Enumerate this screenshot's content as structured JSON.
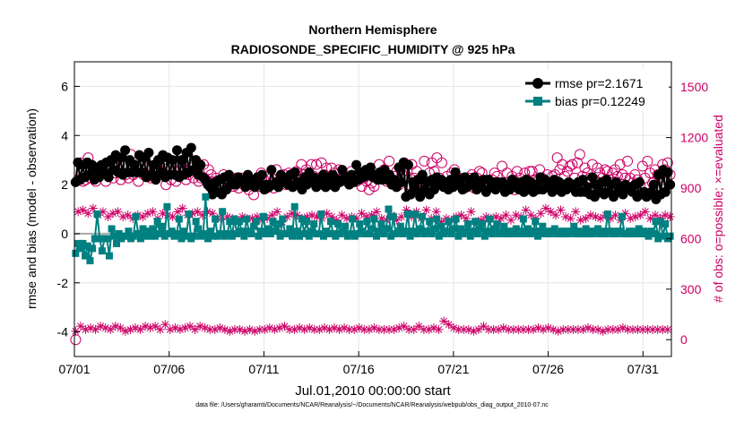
{
  "chart_data": {
    "type": "line",
    "title": "Northern Hemisphere",
    "subtitle": "RADIOSONDE_SPECIFIC_HUMIDITY @ 925 hPa",
    "xlabel": "Jul.01,2010 00:00:00 start",
    "ylabel_left": "rmse and bias (model - observation)",
    "ylabel_right": "# of obs: o=possible; ×=evaluated",
    "x_tick_labels": [
      "07/01",
      "07/06",
      "07/11",
      "07/16",
      "07/21",
      "07/26",
      "07/31"
    ],
    "y_left_ticks": [
      "-4",
      "-2",
      "0",
      "2",
      "4",
      "6"
    ],
    "y_right_ticks": [
      "0",
      "300",
      "600",
      "900",
      "1200",
      "1500"
    ],
    "ylim_left": [
      -5,
      7
    ],
    "ylim_right": [
      -100,
      1650
    ],
    "xlim_days": [
      0,
      31.5
    ],
    "legend_position": "top-right",
    "grid": true,
    "colors": {
      "rmse": "#000000",
      "bias": "#008080",
      "obs": "#cc0066",
      "zero_line": "#aaaaaa"
    },
    "series": [
      {
        "name": "rmse pr=2.1671",
        "axis": "left",
        "marker": "circle",
        "values": [
          2.1,
          2.9,
          2.2,
          2.8,
          2.3,
          2.9,
          2.4,
          2.8,
          2.2,
          2.6,
          2.3,
          2.8,
          2.5,
          2.9,
          2.3,
          3.0,
          2.6,
          3.2,
          2.5,
          3.1,
          2.4,
          3.4,
          2.5,
          3.0,
          2.5,
          2.8,
          2.5,
          3.2,
          2.5,
          3.1,
          2.3,
          3.3,
          2.4,
          2.8,
          2.2,
          3.0,
          2.5,
          3.2,
          2.3,
          3.1,
          2.4,
          3.0,
          2.4,
          3.4,
          2.3,
          3.0,
          2.4,
          3.3,
          2.5,
          3.5,
          2.6,
          3.0,
          2.4,
          2.8,
          2.3,
          2.2,
          2.0,
          1.9,
          1.6,
          2.1,
          1.7,
          2.2,
          1.6,
          2.3,
          1.8,
          2.4,
          2.0,
          2.1,
          2.0,
          2.3,
          2.1,
          2.2,
          1.9,
          2.4,
          2.0,
          2.2,
          1.9,
          2.3,
          2.1,
          2.4,
          1.8,
          2.0,
          1.9,
          2.6,
          2.0,
          2.1,
          1.9,
          2.4,
          2.1,
          2.2,
          2.0,
          2.4,
          1.9,
          2.5,
          2.1,
          2.0,
          1.8,
          2.3,
          2.0,
          2.5,
          2.1,
          2.3,
          1.9,
          2.2,
          2.0,
          2.4,
          1.9,
          2.2,
          2.0,
          2.4,
          1.9,
          2.2,
          2.1,
          2.6,
          2.2,
          2.3,
          2.0,
          2.4,
          2.1,
          2.8,
          2.2,
          2.5,
          2.3,
          2.6,
          2.4,
          2.7,
          2.3,
          2.4,
          2.2,
          2.5,
          2.2,
          2.6,
          2.2,
          2.4,
          2.0,
          2.2,
          1.9,
          2.7,
          2.1,
          2.9,
          1.5,
          2.8,
          1.6,
          2.1,
          1.8,
          2.2,
          1.5,
          2.4,
          1.8,
          2.1,
          1.6,
          2.2,
          1.8,
          2.3,
          2.0,
          2.2,
          1.9,
          2.1,
          1.8,
          2.2,
          1.9,
          2.5,
          2.0,
          2.2,
          1.8,
          2.3,
          1.9,
          2.2,
          2.0,
          2.3,
          1.8,
          2.1,
          1.9,
          2.2,
          1.7,
          2.2,
          1.9,
          2.1,
          1.8,
          2.1,
          2.0,
          2.1,
          1.7,
          2.0,
          1.8,
          2.2,
          1.9,
          2.1,
          1.8,
          2.1,
          1.7,
          2.2,
          1.8,
          2.1,
          1.7,
          2.0,
          1.8,
          2.3,
          1.8,
          2.2,
          1.9,
          2.1,
          1.7,
          2.2,
          1.8,
          2.1,
          1.7,
          2.0,
          1.8,
          2.1,
          1.9,
          2.0,
          1.7,
          2.1,
          1.7,
          2.2,
          1.7,
          1.9,
          1.6,
          2.3,
          1.5,
          2.0,
          1.7,
          2.1,
          1.6,
          2.2,
          1.7,
          2.0,
          1.5,
          2.1,
          1.7,
          1.9,
          1.6,
          2.0,
          1.8,
          1.9,
          1.7,
          2.0,
          1.5,
          2.1,
          1.6,
          1.7,
          1.5,
          1.6,
          1.7,
          2.0,
          1.4,
          2.4,
          1.6,
          2.6,
          1.7,
          2.5,
          2.0
        ]
      },
      {
        "name": "bias pr=0.12249",
        "axis": "left",
        "marker": "square",
        "values": [
          -0.8,
          -0.4,
          -0.6,
          -0.4,
          -0.9,
          -0.5,
          -1.1,
          -0.6,
          -0.2,
          0.8,
          -0.2,
          -0.7,
          -0.2,
          -0.2,
          -0.9,
          0.2,
          -0.1,
          -0.4,
          0.0,
          -0.2,
          -0.1,
          -0.1,
          0.1,
          -0.2,
          -0.1,
          0.7,
          0.0,
          -0.2,
          0.2,
          -0.1,
          0.1,
          -0.1,
          0.2,
          -0.1,
          0.5,
          0.0,
          0.3,
          -0.1,
          1.1,
          0.0,
          0.1,
          -0.1,
          0.0,
          0.6,
          -0.2,
          0.1,
          -0.1,
          0.8,
          -0.2,
          -0.1,
          0.5,
          0.2,
          -0.1,
          0.0,
          1.5,
          -0.2,
          0.1,
          -0.1,
          0.6,
          -0.1,
          0.0,
          0.9,
          -0.1,
          0.0,
          0.5,
          -0.1,
          0.6,
          0.0,
          0.5,
          0.1,
          -0.1,
          0.6,
          0.1,
          0.0,
          0.3,
          0.5,
          -0.1,
          0.1,
          0.7,
          0.0,
          0.2,
          0.0,
          0.5,
          0.1,
          0.4,
          -0.1,
          0.6,
          0.0,
          0.0,
          0.2,
          -0.1,
          1.1,
          0.1,
          -0.1,
          0.6,
          0.0,
          0.5,
          -0.1,
          0.1,
          0.4,
          0.0,
          0.0,
          0.8,
          -0.1,
          0.1,
          0.0,
          0.5,
          0.0,
          -0.1,
          0.4,
          0.0,
          0.1,
          0.3,
          -0.1,
          0.0,
          0.6,
          -0.1,
          0.0,
          0.4,
          0.1,
          0.0,
          0.5,
          0.0,
          0.2,
          0.6,
          -0.1,
          0.1,
          0.4,
          0.0,
          0.2,
          1.0,
          -0.1,
          0.7,
          0.0,
          0.1,
          0.3,
          0.0,
          0.1,
          0.8,
          -0.1,
          0.1,
          0.8,
          0.0,
          0.2,
          0.7,
          0.0,
          0.1,
          0.5,
          0.0,
          0.2,
          0.6,
          -0.1,
          0.3,
          0.0,
          0.1,
          0.5,
          0.0,
          0.2,
          0.6,
          -0.1,
          0.2,
          0.0,
          0.1,
          0.4,
          -0.1,
          0.1,
          0.5,
          0.0,
          0.2,
          0.4,
          -0.1,
          0.1,
          0.6,
          0.0,
          0.2,
          0.4,
          0.0,
          0.1,
          0.3,
          0.0,
          0.1,
          0.0,
          0.1,
          0.2,
          0.0,
          0.1,
          0.6,
          0.0,
          0.2,
          0.0,
          0.1,
          0.5,
          -0.1,
          0.1,
          0.3,
          0.0,
          0.1,
          0.0,
          0.1,
          0.2,
          0.0,
          0.0,
          0.1,
          0.0,
          0.1,
          0.0,
          0.1,
          0.3,
          0.0,
          0.1,
          0.0,
          0.0,
          0.2,
          0.0,
          0.1,
          0.0,
          0.1,
          0.2,
          0.0,
          0.1,
          0.0,
          0.8,
          0.1,
          0.0,
          0.1,
          0.0,
          0.1,
          0.7,
          0.0,
          0.0,
          0.1,
          0.0,
          0.1,
          0.0,
          0.2,
          0.0,
          0.1,
          0.0,
          -0.1,
          0.1,
          0.0,
          0.5,
          -0.2,
          0.5,
          -0.1,
          0.4,
          -0.2,
          -0.1
        ]
      },
      {
        "name": "possible obs (o)",
        "axis": "right",
        "marker": "circle-open",
        "values": [
          0,
          950,
          1050,
          940,
          950,
          1080,
          960,
          1000,
          940,
          970,
          1030,
          990,
          940,
          1000,
          1060,
          960,
          990,
          1080,
          950,
          1040,
          980,
          960,
          1100,
          980,
          1000,
          940,
          1060,
          980,
          1020,
          970,
          960,
          1000,
          990,
          1010,
          1000,
          990,
          920,
          1020,
          950,
          1050,
          940,
          970,
          1010,
          1010,
          950,
          980,
          1020,
          960,
          1000,
          940,
          960,
          1040,
          950,
          1010,
          980,
          940,
          960,
          920,
          940,
          980,
          960,
          930,
          960,
          910,
          960,
          900,
          960,
          920,
          940,
          890,
          920,
          860,
          930,
          910,
          990,
          950,
          900,
          970,
          960,
          900,
          1010,
          930,
          940,
          980,
          920,
          990,
          980,
          950,
          1000,
          920,
          1040,
          980,
          1010,
          960,
          1040,
          970,
          1040,
          960,
          1050,
          980,
          1020,
          960,
          1020,
          990,
          950,
          1010,
          960,
          980,
          940,
          960,
          1000,
          960,
          940,
          980,
          910,
          960,
          940,
          890,
          930,
          910,
          960,
          1040,
          960,
          1010,
          940,
          1060,
          930,
          970,
          1000,
          920,
          990,
          1050,
          970,
          920,
          1040,
          960,
          1000,
          950,
          940,
          1060,
          940,
          990,
          1050,
          1000,
          1080,
          960,
          1050,
          930,
          970,
          940,
          990,
          1010,
          960,
          960,
          950,
          900,
          930,
          960,
          980,
          900,
          960,
          1000,
          990,
          910,
          940,
          920,
          950,
          990,
          970,
          920,
          1030,
          900,
          990,
          910,
          970,
          890,
          1000,
          960,
          930,
          990,
          950,
          1000,
          1000,
          950,
          940,
          1010,
          960,
          940,
          980,
          920,
          970,
          980,
          1080,
          1010,
          1040,
          970,
          1000,
          1030,
          1040,
          960,
          1050,
          1100,
          970,
          1020,
          990,
          960,
          1040,
          950,
          1020,
          990,
          960,
          1010,
          1000,
          950,
          990,
          1010,
          970,
          1040,
          980,
          960,
          1060,
          960,
          930,
          980,
          950,
          920,
          1030,
          960,
          1060,
          990,
          930,
          1010,
          980,
          960,
          1040,
          1010,
          1050,
          980
        ]
      },
      {
        "name": "evaluated obs (×)",
        "axis": "right",
        "marker": "asterisk",
        "values": [
          50,
          760,
          80,
          770,
          60,
          750,
          70,
          780,
          60,
          740,
          80,
          760,
          70,
          730,
          60,
          750,
          80,
          760,
          70,
          730,
          50,
          740,
          60,
          720,
          70,
          740,
          60,
          730,
          80,
          750,
          70,
          760,
          80,
          720,
          60,
          750,
          90,
          740,
          60,
          730,
          70,
          760,
          60,
          780,
          70,
          740,
          80,
          750,
          60,
          760,
          80,
          740,
          70,
          760,
          60,
          750,
          60,
          720,
          70,
          730,
          60,
          730,
          50,
          720,
          60,
          710,
          60,
          730,
          50,
          720,
          60,
          720,
          50,
          730,
          60,
          710,
          60,
          720,
          70,
          740,
          60,
          760,
          70,
          700,
          80,
          730,
          60,
          750,
          60,
          740,
          70,
          720,
          60,
          730,
          70,
          740,
          60,
          730,
          60,
          720,
          70,
          750,
          60,
          730,
          70,
          710,
          60,
          740,
          70,
          720,
          60,
          730,
          60,
          720,
          70,
          750,
          60,
          730,
          60,
          740,
          70,
          760,
          60,
          720,
          60,
          710,
          60,
          740,
          60,
          710,
          70,
          730,
          80,
          770,
          60,
          730,
          60,
          760,
          80,
          720,
          60,
          770,
          60,
          720,
          70,
          760,
          60,
          700,
          110,
          720,
          90,
          710,
          70,
          730,
          60,
          740,
          60,
          720,
          60,
          760,
          50,
          700,
          60,
          710,
          80,
          730,
          60,
          720,
          60,
          730,
          60,
          720,
          70,
          740,
          60,
          710,
          60,
          740,
          60,
          730,
          60,
          770,
          60,
          740,
          60,
          720,
          70,
          750,
          60,
          780,
          70,
          760,
          60,
          740,
          50,
          770,
          60,
          730,
          60,
          720,
          60,
          760,
          60,
          710,
          60,
          720,
          70,
          740,
          60,
          730,
          60,
          720,
          50,
          740,
          60,
          720,
          60,
          740,
          60,
          710,
          70,
          750,
          60,
          720,
          60,
          730,
          60,
          740,
          60,
          760,
          60,
          720,
          60,
          740,
          60,
          720,
          60,
          740,
          60,
          730
        ]
      }
    ]
  },
  "footnote": "data file: /Users/gharamti/Documents/NCAR/Reanalysis/~/Documents/NCAR/Reanalysis/webpub/obs_diag_output_2010-07.nc"
}
